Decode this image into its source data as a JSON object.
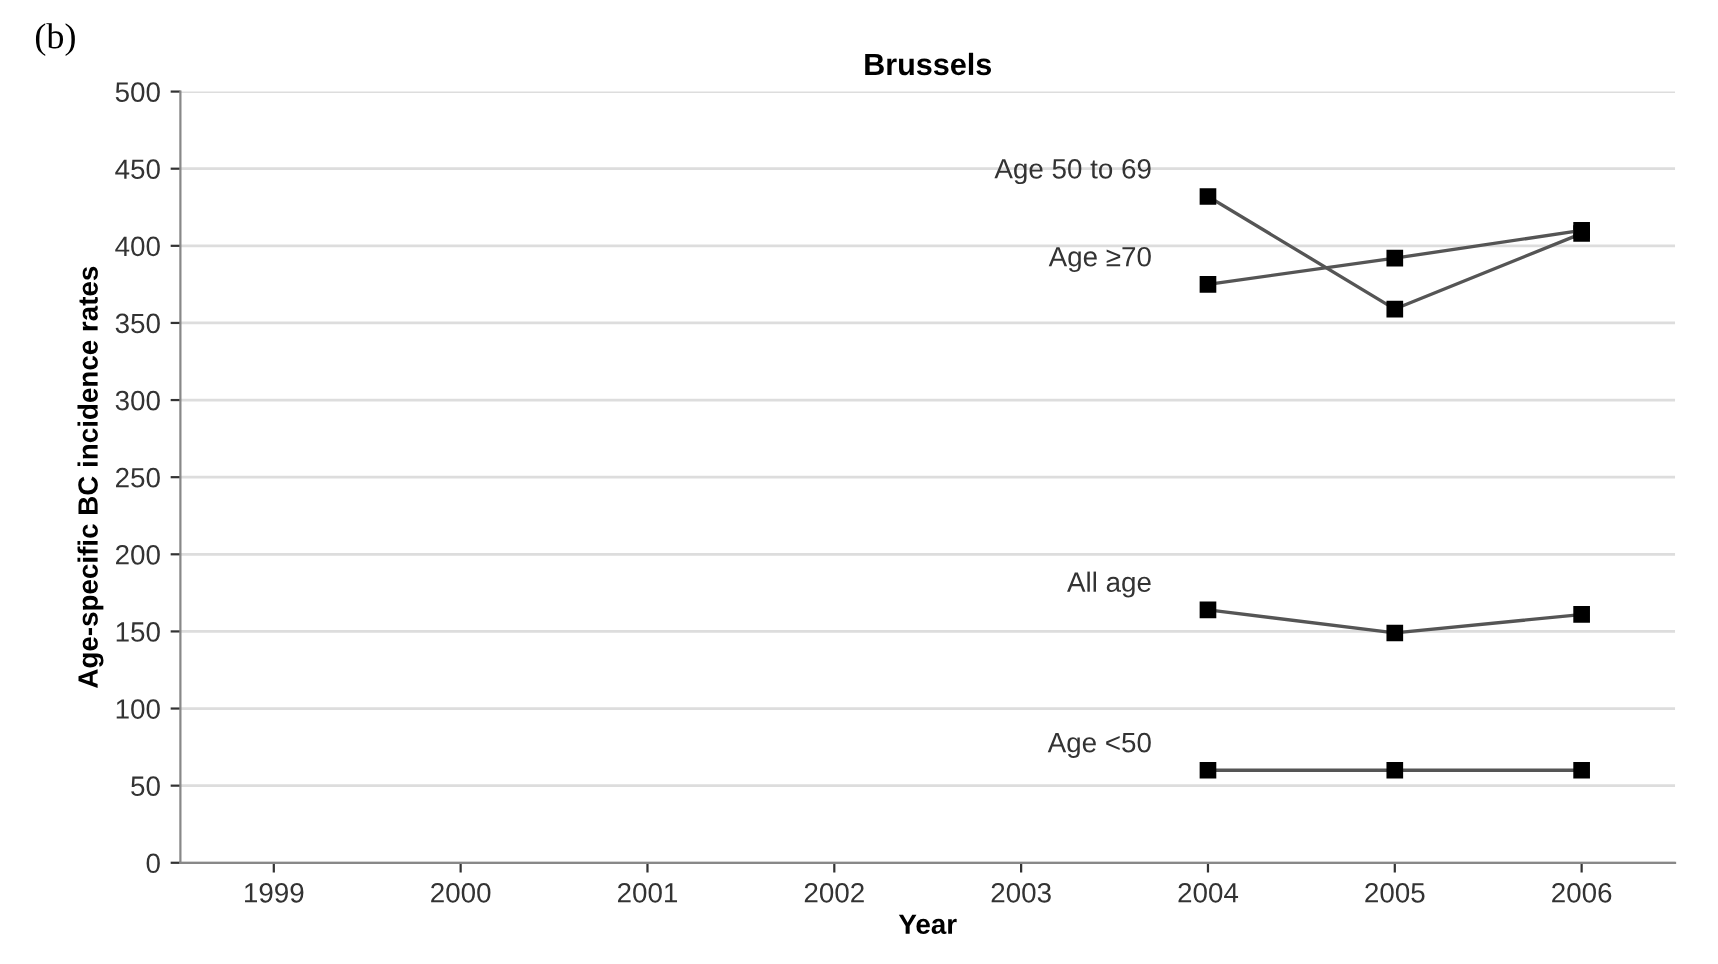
{
  "chart_data": {
    "type": "line",
    "title": "Brussels",
    "xlabel": "Year",
    "ylabel": "Age-specific BC incidence rates",
    "annotations": [
      "(b)"
    ],
    "categories": [
      "1999",
      "2000",
      "2001",
      "2002",
      "2003",
      "2004",
      "2005",
      "2006"
    ],
    "series": [
      {
        "name": "Age 50 to 69",
        "color": "#555555",
        "values": [
          null,
          null,
          null,
          null,
          null,
          432,
          359,
          408
        ]
      },
      {
        "name": "Age ≥70",
        "color": "#555555",
        "values": [
          null,
          null,
          null,
          null,
          null,
          375,
          392,
          410
        ]
      },
      {
        "name": "All age",
        "color": "#555555",
        "values": [
          null,
          null,
          null,
          null,
          null,
          164,
          149,
          161
        ]
      },
      {
        "name": "Age <50",
        "color": "#555555",
        "values": [
          null,
          null,
          null,
          null,
          null,
          60,
          60,
          60
        ]
      }
    ],
    "ylim": [
      0,
      500
    ],
    "yticks": [
      0,
      50,
      100,
      150,
      200,
      250,
      300,
      350,
      400,
      450,
      500
    ],
    "grid": "y",
    "marker": "square",
    "line_style": "solid",
    "legend": false
  }
}
